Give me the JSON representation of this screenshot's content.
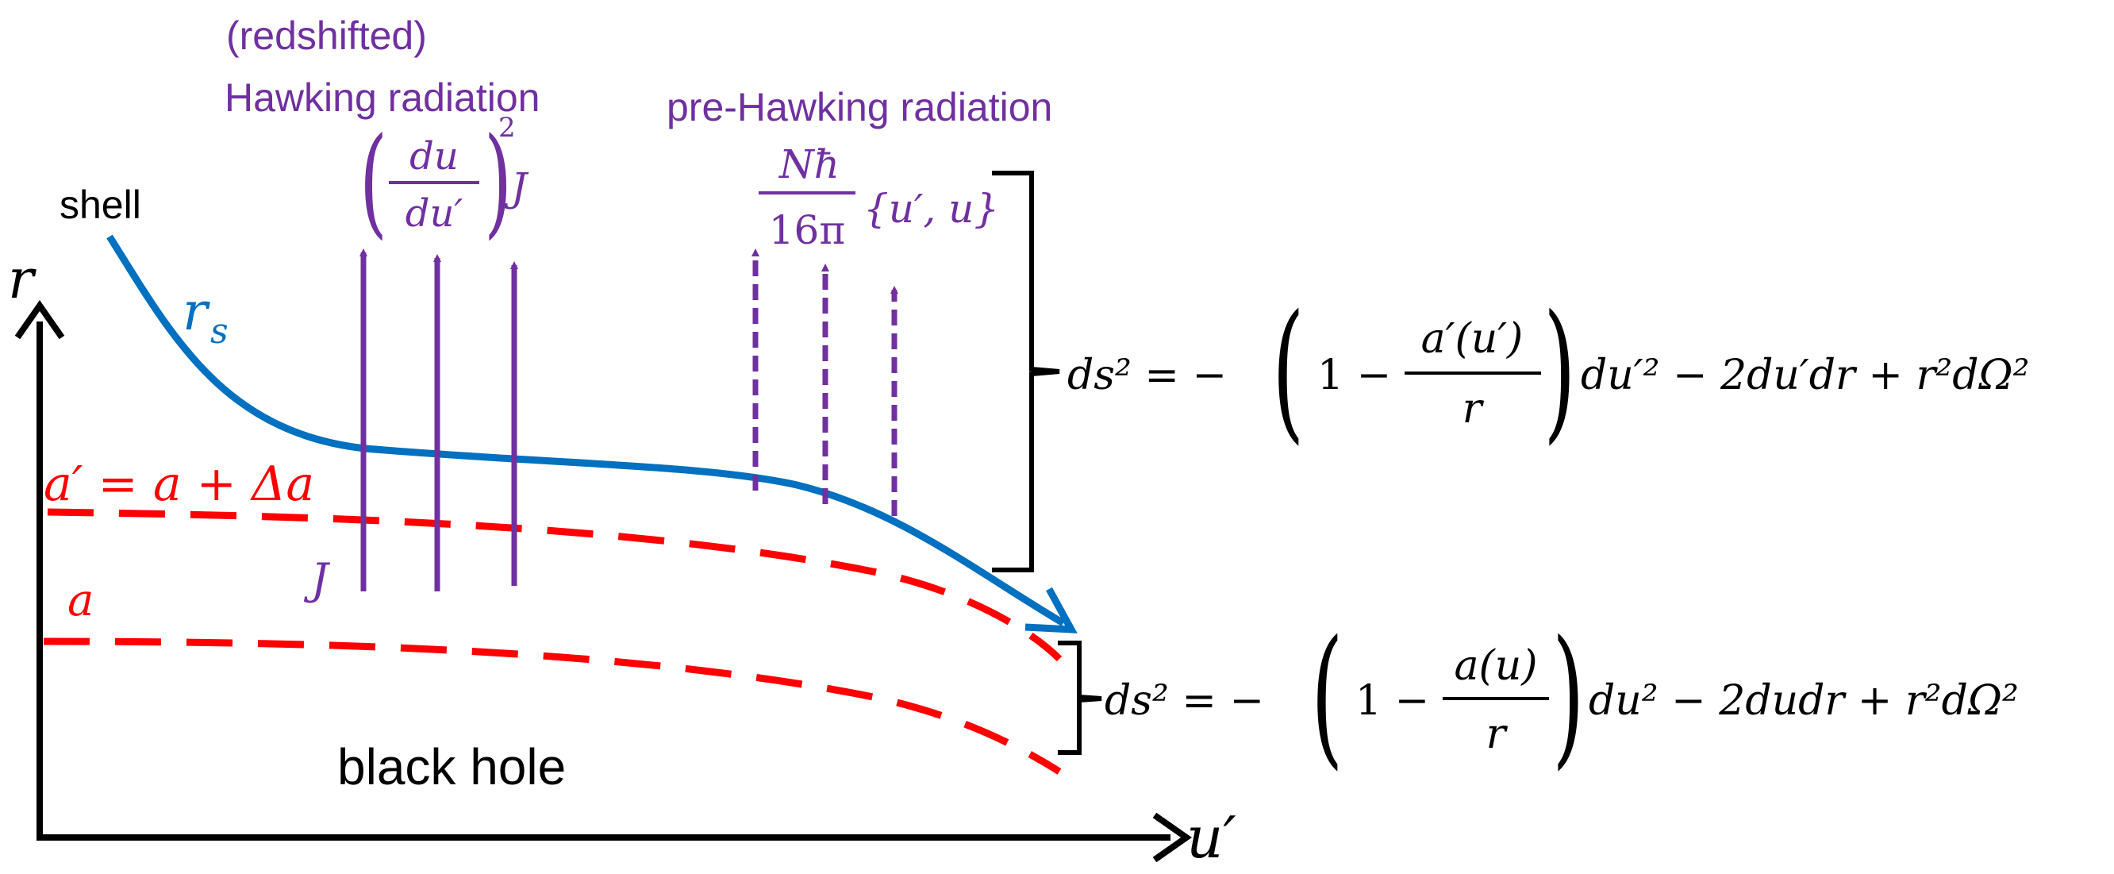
{
  "colors": {
    "purple": "#7030a0",
    "red": "#ff0000",
    "blue": "#0070c0",
    "black": "#000000"
  },
  "labels": {
    "redshifted": "(redshifted)",
    "hawking_radiation": "Hawking radiation",
    "pre_hawking_radiation": "pre-Hawking radiation",
    "shell": "shell",
    "r_axis": "r",
    "u_prime_axis": "u′",
    "r_s": "r",
    "r_s_sub": "s",
    "a_prime_eq": "a′ = a + Δa",
    "a": "a",
    "J_bottom": "J",
    "black_hole": "black hole"
  },
  "hawking_formula": {
    "numerator": "du",
    "denominator": "du′",
    "exponent": "2",
    "factor": "J"
  },
  "pre_hawking_formula": {
    "numerator": "Nħ",
    "denominator": "16π",
    "bracket": "{u′, u}"
  },
  "metric_outer": {
    "lhs": "ds² = −",
    "one_minus": "1 −",
    "numerator": "a′(u′)",
    "denominator": "r",
    "rhs": "du′² − 2du′dr + r²dΩ²"
  },
  "metric_inner": {
    "lhs": "ds² = −",
    "one_minus": "1 −",
    "numerator": "a(u)",
    "denominator": "r",
    "rhs": "du² − 2dudr + r²dΩ²"
  }
}
